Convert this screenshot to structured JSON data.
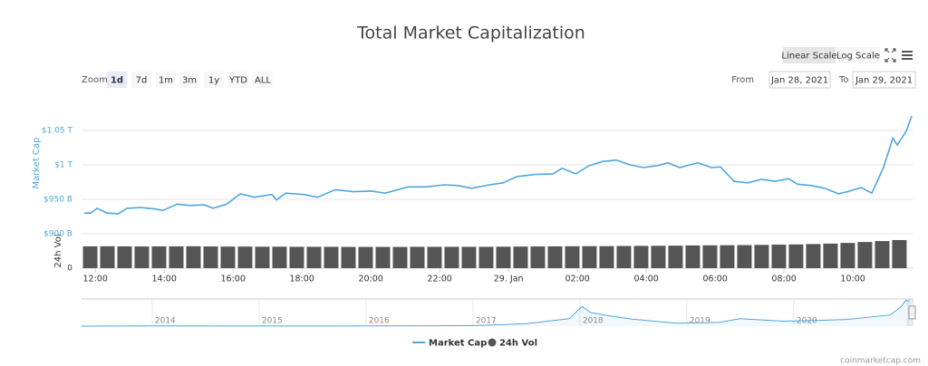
{
  "chart_data": {
    "type": "line",
    "title": "Total Market Capitalization",
    "scale_buttons": [
      "Linear Scale",
      "Log Scale"
    ],
    "zoom_label": "Zoom",
    "zoom_ranges": [
      "1d",
      "7d",
      "1m",
      "3m",
      "1y",
      "YTD",
      "ALL"
    ],
    "from_label": "From",
    "from": "Jan 28, 2021",
    "to_label": "To",
    "to": "Jan 29, 2021",
    "ylabel": "Market Cap",
    "y2label": "24h Vol",
    "xlim": [
      11.6,
      35.76
    ],
    "xticks": [
      {
        "value": 12,
        "label": "12:00"
      },
      {
        "value": 14,
        "label": "14:00"
      },
      {
        "value": 16,
        "label": "16:00"
      },
      {
        "value": 18,
        "label": "18:00"
      },
      {
        "value": 20,
        "label": "20:00"
      },
      {
        "value": 22,
        "label": "22:00"
      },
      {
        "value": 24,
        "label": "29. Jan"
      },
      {
        "value": 26,
        "label": "02:00"
      },
      {
        "value": 28,
        "label": "04:00"
      },
      {
        "value": 30,
        "label": "06:00"
      },
      {
        "value": 32,
        "label": "08:00"
      },
      {
        "value": 34,
        "label": "10:00"
      }
    ],
    "ylim": [
      900,
      1075
    ],
    "yticks": [
      {
        "value": 900,
        "label": "$900 B"
      },
      {
        "value": 950,
        "label": "$950 B"
      },
      {
        "value": 1000,
        "label": "$1 T"
      },
      {
        "value": 1050,
        "label": "$1.05 T"
      }
    ],
    "y2lim": [
      0,
      300
    ],
    "y2ticks": [
      0
    ],
    "grid": true,
    "series": [
      {
        "name": "Market Cap",
        "color": "#4fa6dc",
        "x": [
          11.68,
          11.87,
          12.05,
          12.34,
          12.66,
          12.92,
          13.32,
          13.71,
          13.97,
          14.37,
          14.76,
          15.16,
          15.42,
          15.82,
          16.21,
          16.61,
          17.13,
          17.26,
          17.53,
          18.05,
          18.45,
          18.97,
          19.5,
          20.03,
          20.42,
          21.08,
          21.61,
          22.13,
          22.53,
          22.92,
          23.45,
          23.84,
          24.24,
          24.76,
          25.29,
          25.55,
          25.95,
          26.34,
          26.74,
          27.13,
          27.53,
          27.92,
          28.32,
          28.63,
          28.97,
          29.5,
          29.89,
          30.16,
          30.55,
          30.95,
          31.34,
          31.74,
          32.13,
          32.39,
          32.79,
          33.18,
          33.58,
          33.84,
          34.24,
          34.55,
          34.89,
          35.16,
          35.29,
          35.55,
          35.71
        ],
        "values": [
          930,
          930,
          937,
          930,
          929,
          937,
          938,
          936,
          934,
          943,
          941,
          942,
          937,
          943,
          958,
          953,
          957,
          949,
          959,
          957,
          953,
          964,
          961,
          962,
          959,
          968,
          968,
          971,
          970,
          966,
          971,
          974,
          983,
          986,
          987,
          995,
          987,
          999,
          1005,
          1007,
          1000,
          996,
          999,
          1003,
          996,
          1003,
          996,
          997,
          976,
          974,
          979,
          976,
          980,
          972,
          970,
          966,
          958,
          961,
          967,
          959,
          996,
          1039,
          1029,
          1049,
          1071
        ]
      },
      {
        "name": "24h Vol",
        "color": "#555555",
        "type": "bar",
        "axis": "y2",
        "x": [
          11.85,
          12.35,
          12.85,
          13.35,
          13.85,
          14.35,
          14.85,
          15.35,
          15.85,
          16.35,
          16.85,
          17.35,
          17.85,
          18.35,
          18.85,
          19.35,
          19.85,
          20.35,
          20.85,
          21.35,
          21.85,
          22.35,
          22.85,
          23.35,
          23.85,
          24.35,
          24.85,
          25.35,
          25.85,
          26.35,
          26.85,
          27.35,
          27.85,
          28.35,
          28.85,
          29.35,
          29.85,
          30.35,
          30.85,
          31.35,
          31.85,
          32.35,
          32.85,
          33.35,
          33.85,
          34.35,
          34.85,
          35.35
        ],
        "values": [
          190,
          191,
          190,
          189,
          190,
          190,
          191,
          189,
          188,
          188,
          187,
          187,
          186,
          186,
          186,
          185,
          185,
          185,
          185,
          186,
          186,
          186,
          186,
          186,
          187,
          188,
          189,
          190,
          191,
          192,
          192,
          193,
          194,
          195,
          196,
          198,
          199,
          200,
          201,
          203,
          205,
          207,
          210,
          214,
          220,
          228,
          236,
          245
        ]
      }
    ],
    "navigator": {
      "xlim": [
        2013.34,
        2021.12
      ],
      "ylim": [
        0,
        1100
      ],
      "xticks": [
        2014,
        2015,
        2016,
        2017,
        2018,
        2019,
        2020
      ],
      "x": [
        2013.34,
        2014,
        2015,
        2016,
        2017,
        2017.5,
        2017.9,
        2018.02,
        2018.1,
        2018.3,
        2018.5,
        2018.9,
        2019.3,
        2019.5,
        2019.9,
        2020.2,
        2020.5,
        2020.9,
        2021,
        2021.05,
        2021.08
      ],
      "values": [
        1,
        10,
        5,
        7,
        18,
        100,
        300,
        800,
        550,
        400,
        280,
        120,
        150,
        300,
        200,
        230,
        270,
        450,
        770,
        1050,
        1000
      ]
    },
    "credit": "coinmarketcap.com"
  }
}
